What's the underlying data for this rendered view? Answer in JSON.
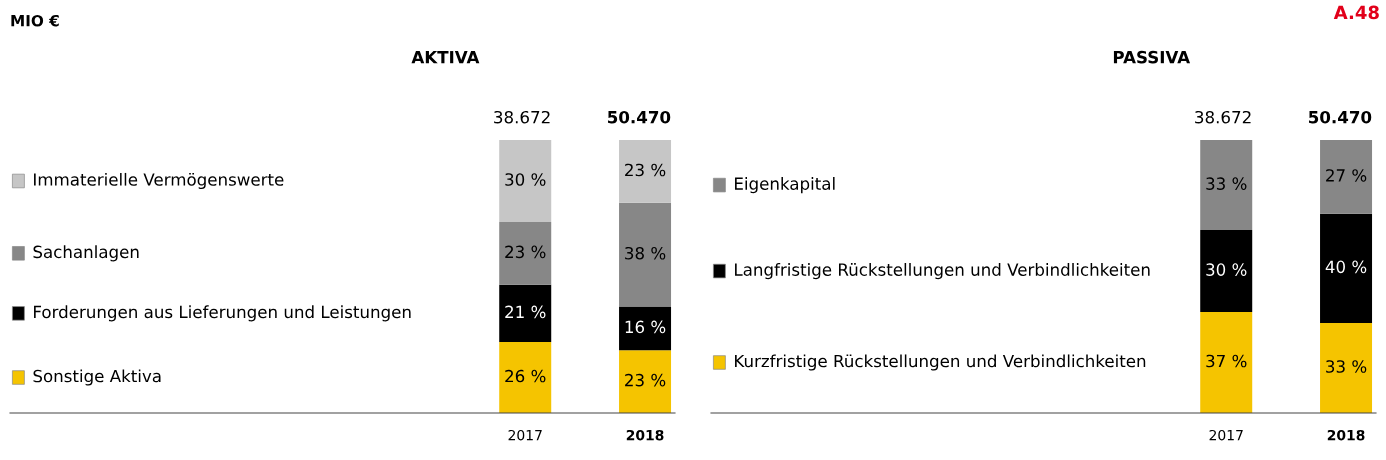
{
  "chart_data": [
    {
      "type": "bar",
      "title": "AKTIVA",
      "stacked": true,
      "legend": "left",
      "grid": false,
      "annotations": [
        "38.672",
        "50.470",
        "MIO €"
      ],
      "categories": [
        "2017",
        "2018"
      ],
      "series": [
        {
          "name": "Sonstige Aktiva",
          "color": "#f5c400",
          "values": [
            26,
            23
          ],
          "value_labels": [
            "26 %",
            "23 %"
          ]
        },
        {
          "name": "Forderungen aus Lieferungen und Leistungen",
          "color": "#000000",
          "values": [
            21,
            16
          ],
          "value_labels": [
            "21 %",
            "16 %"
          ]
        },
        {
          "name": "Sachanlagen",
          "color": "#878787",
          "values": [
            23,
            38
          ],
          "value_labels": [
            "23 %",
            "38 %"
          ]
        },
        {
          "name": "Immaterielle Vermögenswerte",
          "color": "#c6c6c6",
          "values": [
            30,
            23
          ],
          "value_labels": [
            "30 %",
            "23 %"
          ]
        }
      ]
    },
    {
      "type": "bar",
      "title": "PASSIVA",
      "stacked": true,
      "legend": "left",
      "grid": false,
      "annotations": [
        "38.672",
        "50.470",
        "A.48"
      ],
      "categories": [
        "2017",
        "2018"
      ],
      "series": [
        {
          "name": "Kurzfristige Rückstellungen und Verbindlichkeiten",
          "color": "#f5c400",
          "values": [
            37,
            33
          ],
          "value_labels": [
            "37 %",
            "33 %"
          ]
        },
        {
          "name": "Langfristige Rückstellungen und Verbindlichkeiten",
          "color": "#000000",
          "values": [
            30,
            40
          ],
          "value_labels": [
            "30 %",
            "40 %"
          ]
        },
        {
          "name": "Eigenkapital",
          "color": "#878787",
          "values": [
            33,
            27
          ],
          "value_labels": [
            "33 %",
            "27 %"
          ]
        }
      ]
    }
  ]
}
